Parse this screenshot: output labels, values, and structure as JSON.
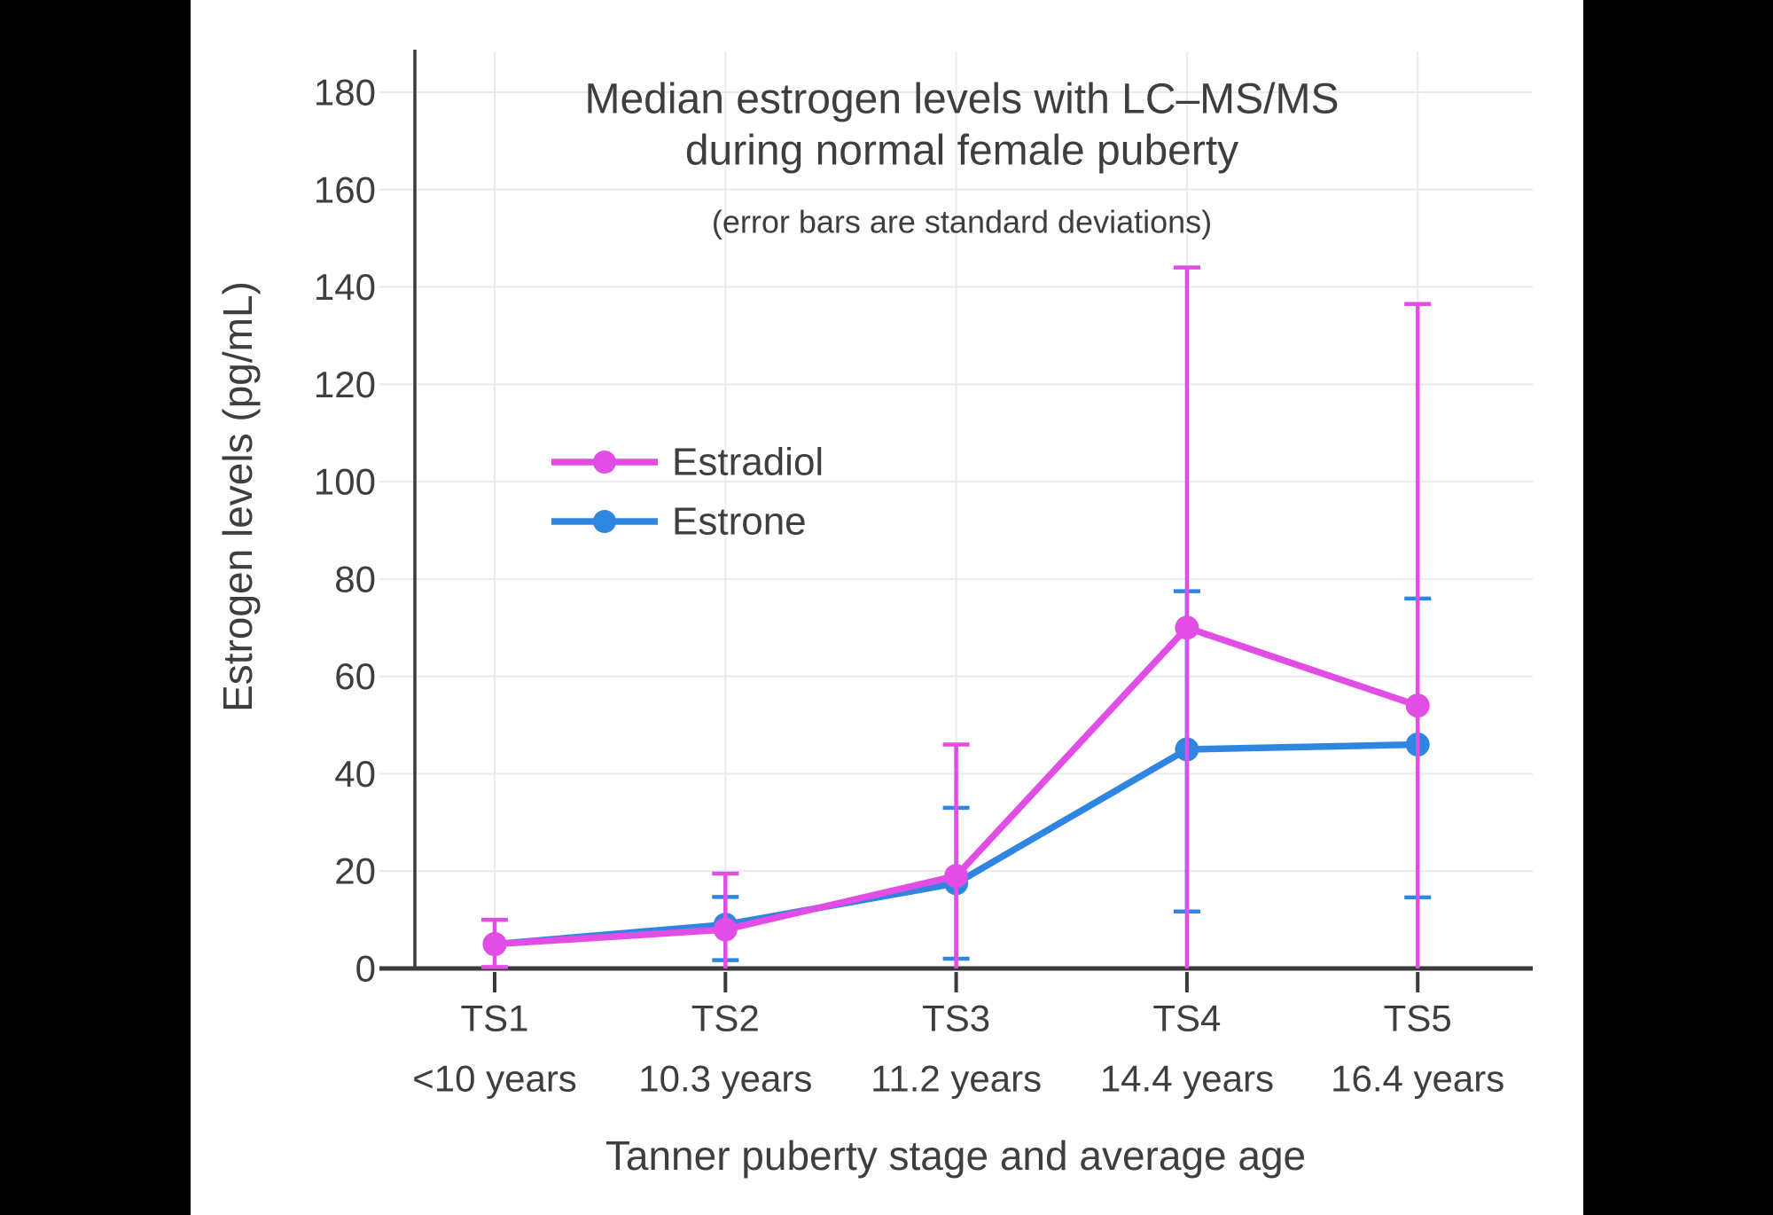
{
  "figure": {
    "background": "#000000",
    "panel_background": "#FFFFFF",
    "text_color": "#3E3E3E",
    "grid_color": "#EBEBEB",
    "axis_color": "#3A3A3A"
  },
  "chart_data": {
    "type": "line",
    "title": "Median estrogen levels with LC–MS/MS",
    "title_line2": "during normal female puberty",
    "subtitle": "(error bars are standard deviations)",
    "xlabel": "Tanner puberty stage and average age",
    "ylabel": "Estrogen levels (pg/mL)",
    "categories": [
      "TS1",
      "TS2",
      "TS3",
      "TS4",
      "TS5"
    ],
    "category_ages": [
      "<10 years",
      "10.3 years",
      "11.2 years",
      "14.4 years",
      "16.4 years"
    ],
    "y_ticks": [
      0,
      20,
      40,
      60,
      80,
      100,
      120,
      140,
      160,
      180
    ],
    "ylim": [
      0,
      188
    ],
    "grid": true,
    "legend_position": "inside-left-middle",
    "legend_order": [
      "Estradiol",
      "Estrone"
    ],
    "series": [
      {
        "name": "Estrone",
        "color": "#2E86E0",
        "values": [
          5,
          9,
          17.5,
          45,
          46
        ],
        "error_top": [
          null,
          14.7,
          33,
          77.5,
          76
        ],
        "error_bottom": [
          null,
          1.7,
          2,
          11.7,
          14.6
        ]
      },
      {
        "name": "Estradiol",
        "color": "#E24DE6",
        "values": [
          5,
          8,
          19,
          70,
          54
        ],
        "error_top": [
          10,
          19.5,
          46,
          144,
          136.5
        ],
        "error_bottom": [
          0.3,
          null,
          null,
          null,
          null
        ]
      }
    ]
  }
}
